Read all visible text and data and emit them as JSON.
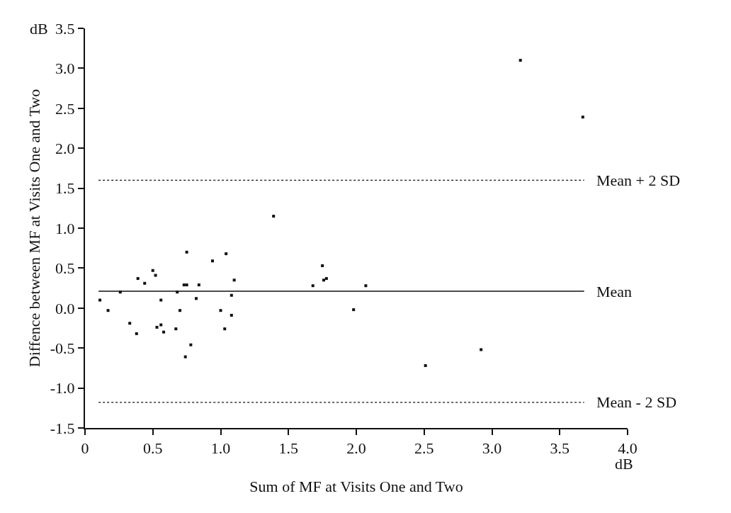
{
  "chart_data": {
    "type": "scatter",
    "xlabel": "Sum of MF at Visits One and Two",
    "ylabel": "Diffence between MF at Visits One and Two",
    "annotations": [
      "dB",
      "dB"
    ],
    "x": [
      0.11,
      0.17,
      0.26,
      0.33,
      0.38,
      0.39,
      0.44,
      0.5,
      0.52,
      0.53,
      0.56,
      0.56,
      0.58,
      0.67,
      0.68,
      0.7,
      0.73,
      0.75,
      0.75,
      0.74,
      0.78,
      0.82,
      0.84,
      0.94,
      1.0,
      1.03,
      1.04,
      1.08,
      1.08,
      1.1,
      1.39,
      1.68,
      1.75,
      1.76,
      1.78,
      1.98,
      2.07,
      2.51,
      2.92,
      3.21,
      3.67
    ],
    "series": [
      {
        "color": "#111111",
        "values": [
          0.1,
          -0.03,
          0.2,
          -0.19,
          -0.32,
          0.37,
          0.31,
          0.47,
          0.41,
          -0.24,
          0.1,
          -0.21,
          -0.3,
          -0.26,
          0.2,
          -0.03,
          0.29,
          0.29,
          0.7,
          -0.61,
          -0.46,
          0.12,
          0.29,
          0.59,
          -0.03,
          -0.26,
          0.68,
          0.16,
          -0.09,
          0.35,
          1.15,
          0.28,
          0.53,
          0.35,
          0.37,
          -0.02,
          0.28,
          -0.72,
          -0.52,
          3.1,
          2.39
        ]
      }
    ],
    "marker": "square",
    "xlim": [
      0,
      4.0
    ],
    "xticks": [
      {
        "value": 0,
        "label": "0"
      },
      0.5,
      {
        "value": 1,
        "label": "1.0"
      },
      1.5,
      {
        "value": 2,
        "label": "2.0"
      },
      2.5,
      {
        "value": 3,
        "label": "3.0"
      },
      3.5,
      {
        "value": 4,
        "label": "4.0"
      }
    ],
    "ylim": [
      -1.5,
      3.5
    ],
    "yticks": [
      -1.5,
      {
        "value": -1,
        "label": "-1.0"
      },
      -0.5,
      {
        "value": 0,
        "label": "0.0"
      },
      0.5,
      {
        "value": 1,
        "label": "1.0"
      },
      1.5,
      {
        "value": 2,
        "label": "2.0"
      },
      2.5,
      {
        "value": 3,
        "label": "3.0"
      },
      3.5
    ],
    "ref_lines": [
      {
        "axis": "y",
        "value": 1.6,
        "label": "Mean + 2 SD",
        "line_style": "dotted",
        "color": "#111111"
      },
      {
        "axis": "y",
        "value": 0.21,
        "label": "Mean",
        "line_style": "solid",
        "color": "#111111"
      },
      {
        "axis": "y",
        "value": -1.18,
        "label": "Mean - 2 SD",
        "line_style": "dotted",
        "color": "#111111"
      }
    ]
  }
}
